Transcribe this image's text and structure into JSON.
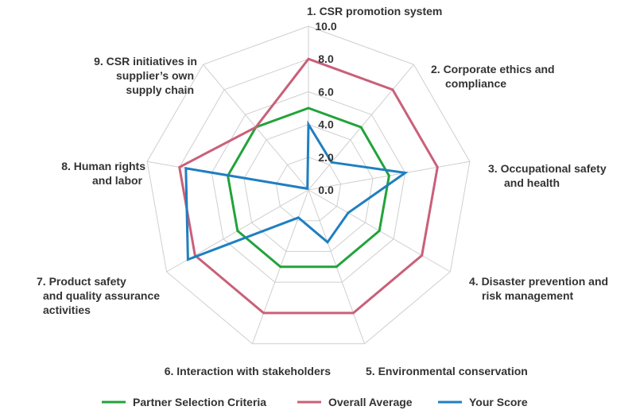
{
  "chart_data": {
    "type": "radar",
    "axes": [
      {
        "lines": [
          "1. CSR promotion system"
        ]
      },
      {
        "lines": [
          "2. Corporate ethics and",
          "compliance"
        ]
      },
      {
        "lines": [
          "3. Occupational safety",
          "and health"
        ]
      },
      {
        "lines": [
          "4. Disaster prevention and",
          "risk management"
        ]
      },
      {
        "lines": [
          "5. Environmental conservation"
        ]
      },
      {
        "lines": [
          "6. Interaction with stakeholders"
        ]
      },
      {
        "lines": [
          "7. Product safety",
          "and quality assurance",
          "activities"
        ]
      },
      {
        "lines": [
          "8. Human rights",
          "and labor"
        ]
      },
      {
        "lines": [
          "9. CSR initiatives in",
          "supplier’s own",
          "supply chain"
        ]
      }
    ],
    "range": [
      0,
      10
    ],
    "ticks": [
      "0.0",
      "2.0",
      "4.0",
      "6.0",
      "8.0",
      "10.0"
    ],
    "tick_values": [
      0,
      2,
      4,
      6,
      8,
      10
    ],
    "grid": true,
    "legend_position": "bottom",
    "series": [
      {
        "name": "Partner Selection Criteria",
        "color": "#22a33a",
        "values": [
          5.0,
          5.0,
          5.0,
          5.0,
          5.0,
          5.0,
          5.0,
          5.0,
          5.0
        ]
      },
      {
        "name": "Overall Average",
        "color": "#c96079",
        "values": [
          8.0,
          8.0,
          8.0,
          8.0,
          8.0,
          8.0,
          8.0,
          8.0,
          5.0
        ]
      },
      {
        "name": "Your Score",
        "color": "#1f7fc0",
        "values": [
          4.0,
          2.2,
          6.0,
          2.8,
          3.4,
          1.8,
          8.5,
          7.6,
          0.1
        ]
      }
    ]
  }
}
